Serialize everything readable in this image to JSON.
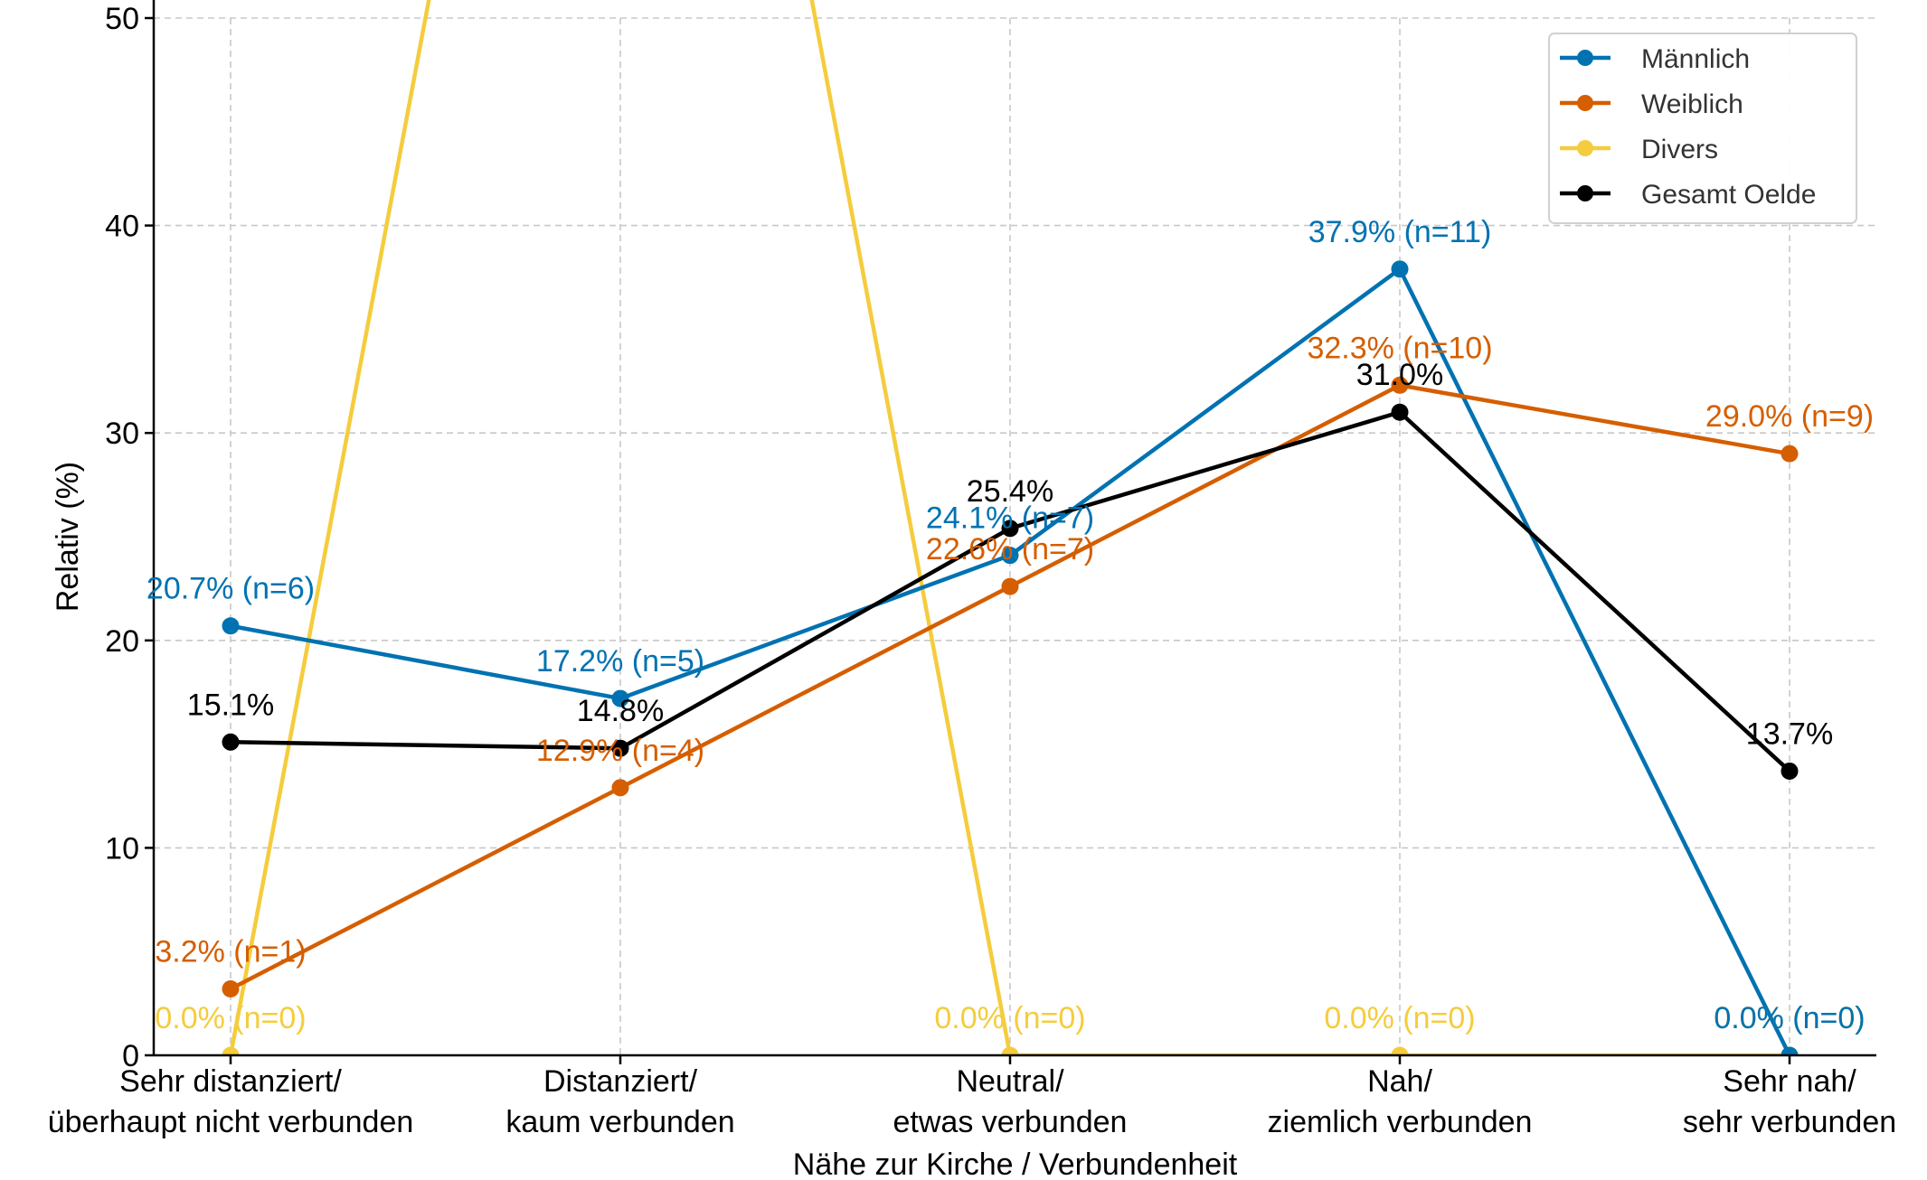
{
  "chart_data": {
    "type": "line",
    "title": "",
    "xlabel": "Nähe zur Kirche / Verbundenheit",
    "ylabel": "Relativ (%)",
    "ylim": [
      0,
      50
    ],
    "yticks": [
      "0",
      "10",
      "20",
      "30",
      "40",
      "50"
    ],
    "ytick_values": [
      0,
      10,
      20,
      30,
      40,
      50
    ],
    "grid": true,
    "legend_position": "top-right",
    "categories": [
      [
        "Sehr distanziert/",
        "überhaupt nicht verbunden"
      ],
      [
        "Distanziert/",
        "kaum verbunden"
      ],
      [
        "Neutral/",
        "etwas verbunden"
      ],
      [
        "Nah/",
        "ziemlich verbunden"
      ],
      [
        "Sehr nah/",
        "sehr verbunden"
      ]
    ],
    "series": [
      {
        "name": "Männlich",
        "color": "#0072B2",
        "values": [
          20.7,
          17.2,
          24.1,
          37.9,
          0.0
        ],
        "labels": [
          "20.7% (n=6)",
          "17.2% (n=5)",
          "24.1% (n=7)",
          "37.9% (n=11)",
          "0.0% (n=0)"
        ]
      },
      {
        "name": "Weiblich",
        "color": "#D55E00",
        "values": [
          3.2,
          12.9,
          22.6,
          32.3,
          29.0
        ],
        "labels": [
          "3.2% (n=1)",
          "12.9% (n=4)",
          "22.6% (n=7)",
          "32.3% (n=10)",
          "29.0% (n=9)"
        ]
      },
      {
        "name": "Divers",
        "color": "#F5CC3D",
        "values": [
          0.0,
          100.0,
          0.0,
          0.0,
          0.0
        ],
        "labels": [
          "0.0% (n=0)",
          "",
          "0.0% (n=0)",
          "0.0% (n=0)",
          "0.0% (n=0)"
        ]
      },
      {
        "name": "Gesamt Oelde",
        "color": "#000000",
        "values": [
          15.1,
          14.8,
          25.4,
          31.0,
          13.7
        ],
        "labels": [
          "15.1%",
          "14.8%",
          "25.4%",
          "31.0%",
          "13.7%"
        ]
      }
    ]
  }
}
